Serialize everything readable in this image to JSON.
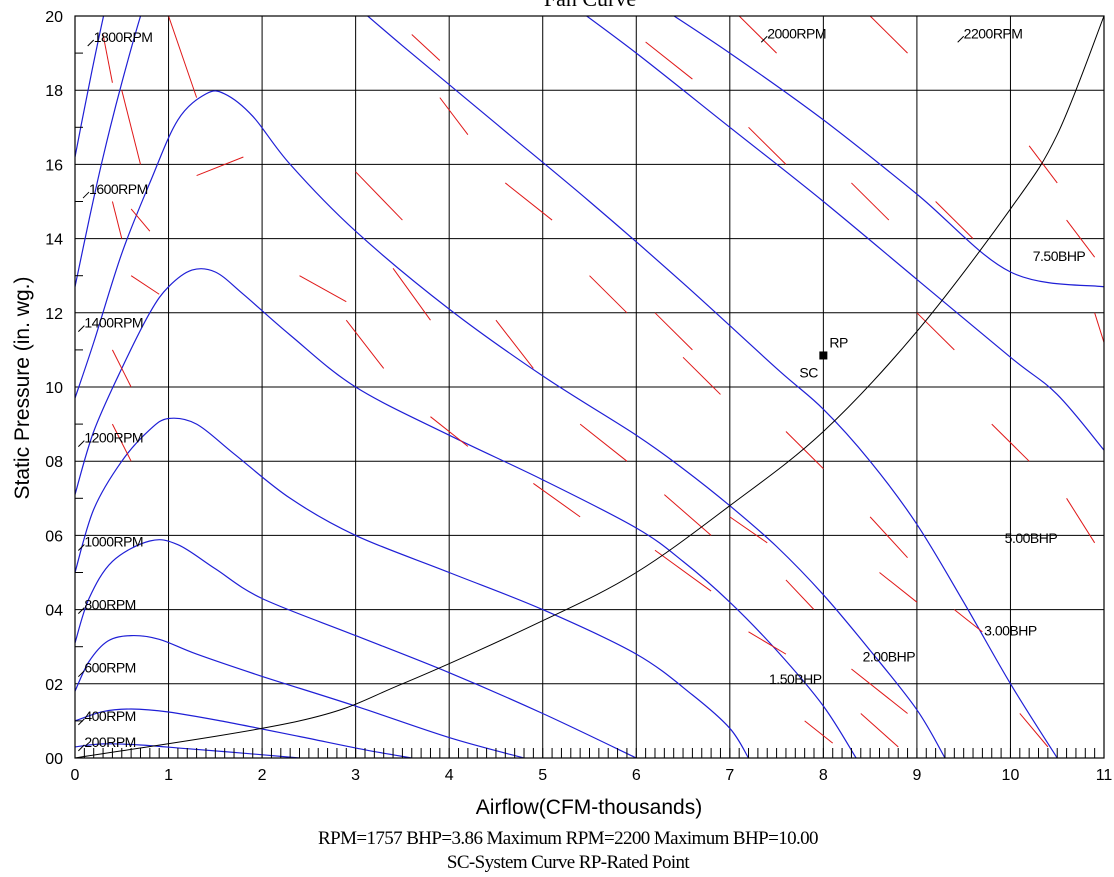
{
  "chart_data": {
    "type": "line",
    "title": "Fan Curve",
    "xlabel": "Airflow(CFM-thousands)",
    "ylabel": "Static Pressure (in. wg.)",
    "xlim": [
      0,
      11
    ],
    "ylim": [
      0,
      2.0
    ],
    "grid": true,
    "x_ticks": [
      {
        "value": 0,
        "label": "0"
      },
      {
        "value": 1,
        "label": "1"
      },
      {
        "value": 2,
        "label": "2"
      },
      {
        "value": 3,
        "label": "3"
      },
      {
        "value": 4,
        "label": "4"
      },
      {
        "value": 5,
        "label": "5"
      },
      {
        "value": 6,
        "label": "6"
      },
      {
        "value": 7,
        "label": "7"
      },
      {
        "value": 8,
        "label": "8"
      },
      {
        "value": 9,
        "label": "9"
      },
      {
        "value": 10,
        "label": "10"
      },
      {
        "value": 11,
        "label": "11"
      }
    ],
    "y_ticks": [
      {
        "value": 0,
        "label": "00"
      },
      {
        "value": 0.2,
        "label": "02"
      },
      {
        "value": 0.4,
        "label": "04"
      },
      {
        "value": 0.6,
        "label": "06"
      },
      {
        "value": 0.8,
        "label": "08"
      },
      {
        "value": 1.0,
        "label": "10"
      },
      {
        "value": 1.2,
        "label": "12"
      },
      {
        "value": 1.4,
        "label": "14"
      },
      {
        "value": 1.6,
        "label": "16"
      },
      {
        "value": 1.8,
        "label": "18"
      },
      {
        "value": 2.0,
        "label": "20"
      }
    ],
    "rpm_curves": [
      {
        "label": "200RPM",
        "label_at": [
          0.1,
          0.03
        ],
        "points": [
          [
            0,
            0.03
          ],
          [
            0.3,
            0.038
          ],
          [
            0.7,
            0.035
          ],
          [
            1.2,
            0.025
          ],
          [
            1.8,
            0.013
          ],
          [
            2.4,
            0
          ]
        ]
      },
      {
        "label": "400RPM",
        "label_at": [
          0.1,
          0.1
        ],
        "points": [
          [
            0,
            0.1
          ],
          [
            0.3,
            0.125
          ],
          [
            0.6,
            0.132
          ],
          [
            1.0,
            0.124
          ],
          [
            1.6,
            0.098
          ],
          [
            2.4,
            0.058
          ],
          [
            3.1,
            0.022
          ],
          [
            3.6,
            0
          ]
        ]
      },
      {
        "label": "600RPM",
        "label_at": [
          0.1,
          0.23
        ],
        "points": [
          [
            0,
            0.18
          ],
          [
            0.15,
            0.26
          ],
          [
            0.35,
            0.315
          ],
          [
            0.6,
            0.33
          ],
          [
            0.9,
            0.32
          ],
          [
            1.3,
            0.28
          ],
          [
            2.0,
            0.22
          ],
          [
            3.0,
            0.14
          ],
          [
            4.0,
            0.055
          ],
          [
            4.8,
            0
          ]
        ]
      },
      {
        "label": "800RPM",
        "label_at": [
          0.1,
          0.4
        ],
        "points": [
          [
            0,
            0.31
          ],
          [
            0.15,
            0.43
          ],
          [
            0.4,
            0.53
          ],
          [
            0.8,
            0.585
          ],
          [
            1.1,
            0.575
          ],
          [
            1.5,
            0.51
          ],
          [
            2.0,
            0.43
          ],
          [
            3.0,
            0.33
          ],
          [
            4.0,
            0.23
          ],
          [
            5.0,
            0.12
          ],
          [
            6.0,
            0
          ]
        ]
      },
      {
        "label": "1000RPM",
        "label_at": [
          0.1,
          0.57
        ],
        "points": [
          [
            0,
            0.5
          ],
          [
            0.2,
            0.67
          ],
          [
            0.5,
            0.8
          ],
          [
            0.8,
            0.885
          ],
          [
            1.0,
            0.915
          ],
          [
            1.3,
            0.9
          ],
          [
            1.7,
            0.82
          ],
          [
            2.3,
            0.7
          ],
          [
            3.0,
            0.6
          ],
          [
            4.0,
            0.5
          ],
          [
            5.0,
            0.4
          ],
          [
            6.0,
            0.28
          ],
          [
            6.6,
            0.17
          ],
          [
            7.0,
            0.08
          ],
          [
            7.2,
            0
          ]
        ]
      },
      {
        "label": "1200RPM",
        "label_at": [
          0.1,
          0.85
        ],
        "points": [
          [
            0,
            0.71
          ],
          [
            0.2,
            0.88
          ],
          [
            0.5,
            1.05
          ],
          [
            0.8,
            1.2
          ],
          [
            1.0,
            1.27
          ],
          [
            1.25,
            1.315
          ],
          [
            1.5,
            1.31
          ],
          [
            1.8,
            1.25
          ],
          [
            2.3,
            1.14
          ],
          [
            3.0,
            1.0
          ],
          [
            4.0,
            0.87
          ],
          [
            5.0,
            0.75
          ],
          [
            6.0,
            0.62
          ],
          [
            6.5,
            0.53
          ],
          [
            7.0,
            0.42
          ],
          [
            7.5,
            0.29
          ],
          [
            8.0,
            0.14
          ],
          [
            8.35,
            0
          ]
        ]
      },
      {
        "label": "1400RPM",
        "label_at": [
          0.1,
          1.16
        ],
        "points": [
          [
            0,
            0.97
          ],
          [
            0.2,
            1.12
          ],
          [
            0.5,
            1.36
          ],
          [
            0.8,
            1.55
          ],
          [
            1.1,
            1.72
          ],
          [
            1.4,
            1.79
          ],
          [
            1.6,
            1.79
          ],
          [
            1.9,
            1.73
          ],
          [
            2.3,
            1.6
          ],
          [
            3.0,
            1.42
          ],
          [
            4.0,
            1.21
          ],
          [
            5.0,
            1.03
          ],
          [
            6.0,
            0.87
          ],
          [
            6.5,
            0.78
          ],
          [
            7.0,
            0.68
          ],
          [
            7.5,
            0.57
          ],
          [
            8.0,
            0.44
          ],
          [
            8.5,
            0.29
          ],
          [
            9.0,
            0.13
          ],
          [
            9.3,
            0
          ]
        ]
      },
      {
        "label": "1600RPM",
        "label_at": [
          0.15,
          1.52
        ],
        "points": [
          [
            0,
            1.27
          ],
          [
            0.15,
            1.45
          ],
          [
            0.3,
            1.62
          ],
          [
            0.5,
            1.82
          ],
          [
            0.75,
            2.04
          ],
          [
            1.0,
            2.2
          ]
        ]
      },
      {
        "label": "1800RPM",
        "label_at": [
          0.2,
          1.93
        ],
        "points": [
          [
            0,
            1.62
          ],
          [
            0.1,
            1.75
          ],
          [
            0.22,
            1.9
          ],
          [
            0.35,
            2.05
          ],
          [
            0.5,
            2.2
          ]
        ]
      },
      {
        "label": "2000RPM",
        "label_at": [
          7.4,
          1.94
        ],
        "points": [
          [
            2.9,
            2.05
          ],
          [
            3.5,
            1.92
          ],
          [
            4.5,
            1.71
          ],
          [
            5.5,
            1.5
          ],
          [
            6.5,
            1.28
          ],
          [
            7.5,
            1.05
          ],
          [
            8.0,
            0.94
          ],
          [
            8.5,
            0.8
          ],
          [
            9.0,
            0.63
          ],
          [
            9.5,
            0.42
          ],
          [
            10.0,
            0.2
          ],
          [
            10.5,
            0
          ]
        ]
      },
      {
        "label": "2200RPM",
        "label_at": [
          9.5,
          1.94
        ],
        "points": [
          [
            5.2,
            2.05
          ],
          [
            6.0,
            1.9
          ],
          [
            7.0,
            1.7
          ],
          [
            8.0,
            1.5
          ],
          [
            9.0,
            1.29
          ],
          [
            10.0,
            1.08
          ],
          [
            10.5,
            0.98
          ],
          [
            11.0,
            0.83
          ]
        ]
      },
      {
        "label": "",
        "label_at": null,
        "points": [
          [
            6.1,
            2.05
          ],
          [
            7.0,
            1.9
          ],
          [
            8.0,
            1.72
          ],
          [
            9.0,
            1.52
          ],
          [
            10.0,
            1.31
          ],
          [
            11.0,
            1.27
          ]
        ]
      }
    ],
    "system_curve": {
      "label": "SC",
      "points": [
        [
          0,
          0
        ],
        [
          2.4,
          0.1
        ],
        [
          3.5,
          0.2
        ],
        [
          5.0,
          0.37
        ],
        [
          6.0,
          0.5
        ],
        [
          7.0,
          0.68
        ],
        [
          8.0,
          0.88
        ],
        [
          9.0,
          1.15
        ],
        [
          10.0,
          1.48
        ],
        [
          10.5,
          1.68
        ],
        [
          11.0,
          2.0
        ]
      ]
    },
    "rated_point": {
      "label": "RP",
      "x": 8.0,
      "y": 1.085
    },
    "bhp_labels": [
      {
        "label": "1.50BHP",
        "x": 7.7,
        "y": 0.2
      },
      {
        "label": "2.00BHP",
        "x": 8.7,
        "y": 0.26
      },
      {
        "label": "3.00BHP",
        "x": 10.0,
        "y": 0.33
      },
      {
        "label": "5.00BHP",
        "x": 10.5,
        "y": 0.58
      },
      {
        "label": "7.50BHP",
        "x": 10.8,
        "y": 1.34
      }
    ],
    "bhp_dashes": [
      [
        [
          7.2,
          0.34
        ],
        [
          7.6,
          0.28
        ]
      ],
      [
        [
          8.3,
          0.24
        ],
        [
          8.9,
          0.12
        ]
      ],
      [
        [
          7.8,
          0.1
        ],
        [
          8.1,
          0.04
        ]
      ],
      [
        [
          8.4,
          0.12
        ],
        [
          8.8,
          0.03
        ]
      ],
      [
        [
          9.4,
          0.4
        ],
        [
          9.7,
          0.34
        ]
      ],
      [
        [
          10.1,
          0.12
        ],
        [
          10.4,
          0.03
        ]
      ],
      [
        [
          10.6,
          0.7
        ],
        [
          10.9,
          0.58
        ]
      ],
      [
        [
          10.9,
          1.2
        ],
        [
          11.0,
          1.12
        ]
      ],
      [
        [
          9.0,
          1.2
        ],
        [
          9.4,
          1.1
        ]
      ],
      [
        [
          9.8,
          0.9
        ],
        [
          10.2,
          0.8
        ]
      ],
      [
        [
          9.2,
          1.5
        ],
        [
          9.6,
          1.4
        ]
      ],
      [
        [
          10.2,
          1.65
        ],
        [
          10.5,
          1.55
        ]
      ],
      [
        [
          10.6,
          1.45
        ],
        [
          10.9,
          1.35
        ]
      ],
      [
        [
          7.1,
          2.0
        ],
        [
          7.5,
          1.9
        ]
      ],
      [
        [
          8.5,
          2.0
        ],
        [
          8.9,
          1.9
        ]
      ],
      [
        [
          6.1,
          1.93
        ],
        [
          6.6,
          1.83
        ]
      ],
      [
        [
          7.2,
          1.7
        ],
        [
          7.6,
          1.6
        ]
      ],
      [
        [
          8.3,
          1.55
        ],
        [
          8.7,
          1.45
        ]
      ],
      [
        [
          6.2,
          1.2
        ],
        [
          6.6,
          1.1
        ]
      ],
      [
        [
          5.5,
          1.3
        ],
        [
          5.9,
          1.2
        ]
      ],
      [
        [
          4.6,
          1.55
        ],
        [
          5.1,
          1.45
        ]
      ],
      [
        [
          3.9,
          1.78
        ],
        [
          4.2,
          1.68
        ]
      ],
      [
        [
          3.0,
          1.58
        ],
        [
          3.5,
          1.45
        ]
      ],
      [
        [
          3.4,
          1.32
        ],
        [
          3.8,
          1.18
        ]
      ],
      [
        [
          3.6,
          1.95
        ],
        [
          3.9,
          1.88
        ]
      ],
      [
        [
          2.9,
          1.18
        ],
        [
          3.3,
          1.05
        ]
      ],
      [
        [
          4.5,
          1.18
        ],
        [
          4.9,
          1.05
        ]
      ],
      [
        [
          3.8,
          0.92
        ],
        [
          4.2,
          0.84
        ]
      ],
      [
        [
          5.4,
          0.9
        ],
        [
          5.9,
          0.8
        ]
      ],
      [
        [
          6.5,
          1.08
        ],
        [
          6.9,
          0.98
        ]
      ],
      [
        [
          7.6,
          0.88
        ],
        [
          8.0,
          0.78
        ]
      ],
      [
        [
          4.9,
          0.74
        ],
        [
          5.4,
          0.65
        ]
      ],
      [
        [
          6.3,
          0.71
        ],
        [
          6.8,
          0.6
        ]
      ],
      [
        [
          7.0,
          0.65
        ],
        [
          7.4,
          0.58
        ]
      ],
      [
        [
          8.5,
          0.65
        ],
        [
          8.9,
          0.54
        ]
      ],
      [
        [
          7.6,
          0.48
        ],
        [
          7.9,
          0.4
        ]
      ],
      [
        [
          8.6,
          0.5
        ],
        [
          9.0,
          0.42
        ]
      ],
      [
        [
          6.2,
          0.56
        ],
        [
          6.8,
          0.45
        ]
      ],
      [
        [
          2.4,
          1.3
        ],
        [
          2.9,
          1.23
        ]
      ],
      [
        [
          1.3,
          1.57
        ],
        [
          1.8,
          1.62
        ]
      ],
      [
        [
          1.0,
          2.0
        ],
        [
          1.3,
          1.78
        ]
      ],
      [
        [
          0.5,
          1.8
        ],
        [
          0.7,
          1.6
        ]
      ],
      [
        [
          0.6,
          1.48
        ],
        [
          0.8,
          1.42
        ]
      ],
      [
        [
          0.6,
          1.3
        ],
        [
          0.9,
          1.25
        ]
      ],
      [
        [
          0.4,
          1.1
        ],
        [
          0.6,
          1.0
        ]
      ],
      [
        [
          0.4,
          0.9
        ],
        [
          0.6,
          0.8
        ]
      ],
      [
        [
          0.4,
          1.5
        ],
        [
          0.5,
          1.4
        ]
      ],
      [
        [
          0.3,
          1.95
        ],
        [
          0.4,
          1.82
        ]
      ]
    ],
    "footer_lines": [
      "RPM=1757 BHP=3.86 Maximum RPM=2200 Maximum BHP=10.00",
      "SC-System Curve RP-Rated Point"
    ]
  }
}
